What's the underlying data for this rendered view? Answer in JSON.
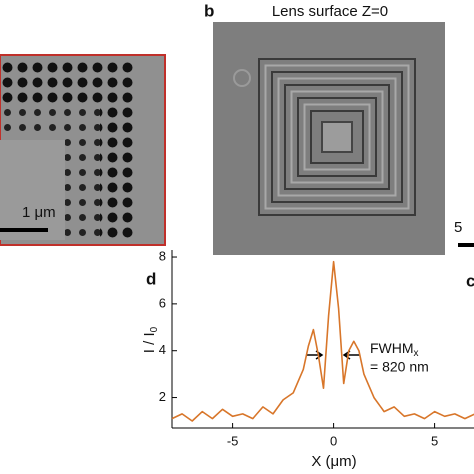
{
  "panel_a": {
    "scale_label": "1 μm"
  },
  "panel_b": {
    "label": "b",
    "title": "Lens surface Z=0",
    "scale_label": "5"
  },
  "panel_c": {
    "label": "c"
  },
  "chart_data": {
    "type": "line",
    "label": "d",
    "xlabel": "X (μm)",
    "ylabel": "I / I",
    "ylabel_sub": "0",
    "annotation": {
      "text": "FWHM",
      "sub": "x",
      "value_text": "= 820 nm"
    },
    "x": [
      -8,
      -7.5,
      -7,
      -6.5,
      -6,
      -5.5,
      -5,
      -4.5,
      -4,
      -3.5,
      -3,
      -2.5,
      -2,
      -1.5,
      -1.25,
      -1,
      -0.75,
      -0.5,
      -0.25,
      0,
      0.25,
      0.5,
      0.75,
      1,
      1.25,
      1.5,
      2,
      2.5,
      3,
      3.5,
      4,
      4.5,
      5,
      5.5,
      6,
      6.5,
      7
    ],
    "series": [
      {
        "color": "#d8762a",
        "values": [
          1.1,
          1.3,
          1.0,
          1.4,
          1.1,
          1.5,
          1.2,
          1.3,
          1.1,
          1.6,
          1.3,
          1.9,
          2.2,
          3.2,
          4.2,
          4.9,
          3.8,
          2.4,
          5.5,
          7.8,
          5.8,
          2.6,
          4.0,
          4.4,
          4.0,
          3.0,
          2.0,
          1.4,
          1.6,
          1.2,
          1.3,
          1.1,
          1.4,
          1.2,
          1.3,
          1.1,
          1.3
        ]
      }
    ],
    "xlim": [
      -8,
      7
    ],
    "ylim": [
      0.7,
      8.3
    ],
    "xticks": [
      -5,
      0,
      5
    ],
    "yticks": [
      2,
      4,
      6,
      8
    ]
  }
}
